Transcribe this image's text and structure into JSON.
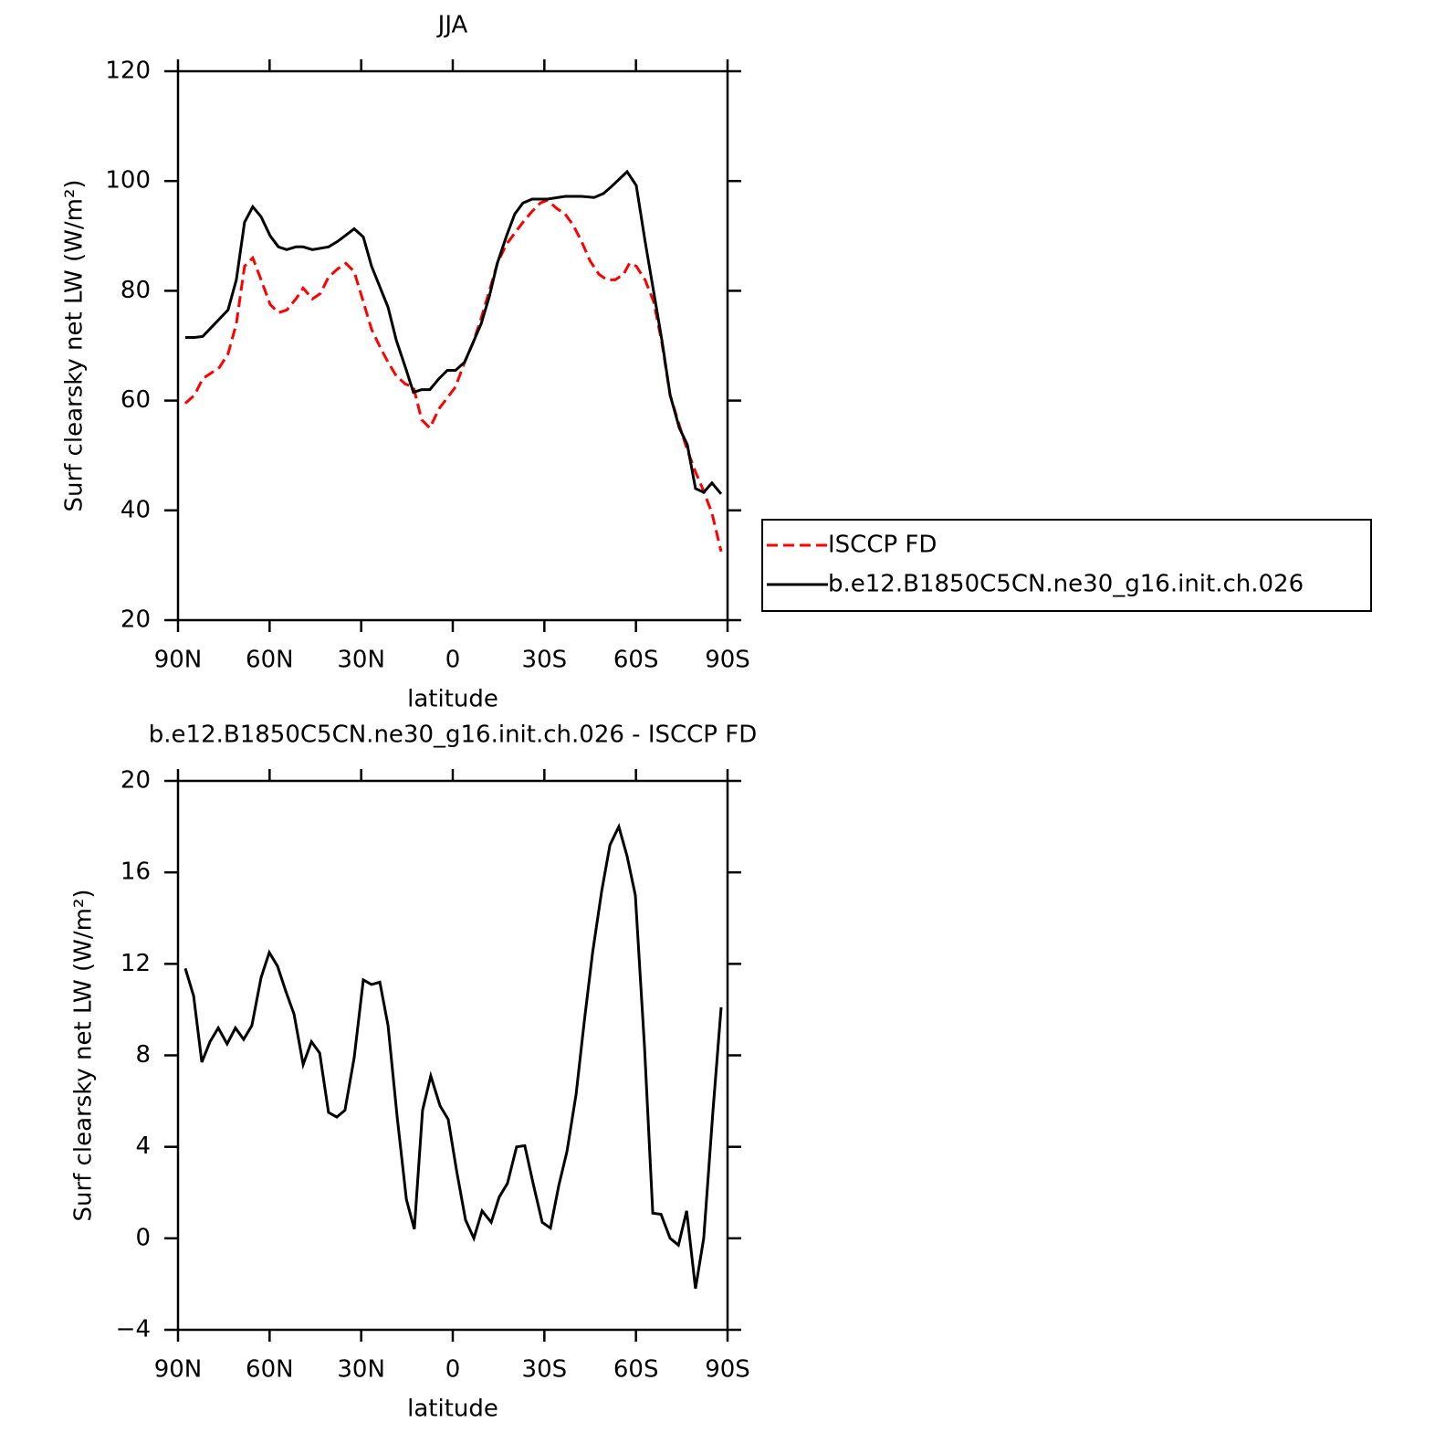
{
  "chart_data": [
    {
      "type": "line",
      "title": "JJA",
      "x_label": "latitude",
      "y_label": "Surf clearsky net LW (W/m²)",
      "xlim": [
        90,
        -90
      ],
      "xticks": [
        {
          "value": 90,
          "label": "90N"
        },
        {
          "value": 60,
          "label": "60N"
        },
        {
          "value": 30,
          "label": "30N"
        },
        {
          "value": 0,
          "label": "0"
        },
        {
          "value": -30,
          "label": "30S"
        },
        {
          "value": -60,
          "label": "60S"
        },
        {
          "value": -90,
          "label": "90S"
        }
      ],
      "ylim": [
        20,
        120
      ],
      "yticks": [
        20,
        40,
        60,
        80,
        100,
        120
      ],
      "legend": "right",
      "series": [
        {
          "name": "ISCCP FD",
          "color": "#ff0000",
          "dash": true,
          "x": [
            87.6,
            84.6,
            81.9,
            76.5,
            73.6,
            70.9,
            68.2,
            65.5,
            62.8,
            59.8,
            57.1,
            54.4,
            51.4,
            49.0,
            46.0,
            43.4,
            40.7,
            37.7,
            35.0,
            32.3,
            29.3,
            26.6,
            23.6,
            21.2,
            18.5,
            15.5,
            12.9,
            10.2,
            7.5,
            4.5,
            1.8,
            -0.9,
            -3.9,
            -6.6,
            -9.3,
            -12.0,
            -14.6,
            -17.6,
            -20.3,
            -23.0,
            -26.0,
            -28.7,
            -31.0,
            -34.1,
            -36.8,
            -39.4,
            -42.2,
            -44.9,
            -47.9,
            -50.5,
            -53.2,
            -55.9,
            -57.9,
            -60.1,
            -63.0,
            -65.8,
            -68.5,
            -71.2,
            -74.2,
            -76.8,
            -79.5,
            -82.2,
            -84.9,
            -87.9
          ],
          "values": [
            59.5,
            61,
            64,
            66,
            68.5,
            74,
            84.5,
            86,
            82,
            77.5,
            76,
            76.5,
            78.5,
            80.5,
            78.5,
            79.5,
            82.5,
            84,
            85,
            83.5,
            78,
            73,
            69.5,
            67,
            64.5,
            63,
            62.5,
            56.5,
            55,
            58.5,
            60.5,
            62.5,
            67,
            70.5,
            75,
            80,
            85,
            88.5,
            90.5,
            92.5,
            94.5,
            96,
            96.5,
            95,
            94,
            92,
            89,
            85.5,
            83,
            82,
            82,
            83,
            85,
            84.5,
            82,
            78,
            70.5,
            61,
            55.5,
            51,
            47,
            43.5,
            39.5,
            32.5
          ]
        },
        {
          "name": "b.e12.B1850C5CN.ne30_g16.init.ch.026",
          "color": "#000000",
          "dash": false,
          "x": [
            87.6,
            84.6,
            81.9,
            73.6,
            70.9,
            68.2,
            65.5,
            62.8,
            59.8,
            57.1,
            54.4,
            51.4,
            49.0,
            46.0,
            40.7,
            37.7,
            32.3,
            29.3,
            26.6,
            21.2,
            18.5,
            15.5,
            12.9,
            10.2,
            7.5,
            4.5,
            1.8,
            -0.9,
            -3.9,
            -9.3,
            -12.0,
            -14.6,
            -17.6,
            -20.3,
            -23.0,
            -26.0,
            -31.0,
            -36.8,
            -42.2,
            -46.3,
            -49.3,
            -52.0,
            -57.1,
            -60.1,
            -63.0,
            -68.5,
            -71.2,
            -74.2,
            -76.8,
            -79.5,
            -82.2,
            -84.9,
            -87.9
          ],
          "values": [
            71.5,
            71.5,
            71.7,
            76.5,
            82,
            92.5,
            95.3,
            93.5,
            90,
            88,
            87.5,
            88,
            88,
            87.5,
            88,
            89,
            91.3,
            89.8,
            84.5,
            77,
            71,
            66,
            61.5,
            62,
            62,
            64,
            65.5,
            65.5,
            67,
            74,
            79,
            85,
            90,
            94,
            96,
            96.7,
            96.7,
            97.2,
            97.2,
            97,
            97.7,
            99,
            101.7,
            99.2,
            89,
            71,
            61,
            55,
            52,
            44,
            43.3,
            45,
            43
          ]
        }
      ]
    },
    {
      "type": "line",
      "title": "b.e12.B1850C5CN.ne30_g16.init.ch.026 - ISCCP FD",
      "x_label": "latitude",
      "y_label": "Surf clearsky net LW (W/m²)",
      "xlim": [
        90,
        -90
      ],
      "xticks": [
        {
          "value": 90,
          "label": "90N"
        },
        {
          "value": 60,
          "label": "60N"
        },
        {
          "value": 30,
          "label": "30N"
        },
        {
          "value": 0,
          "label": "0"
        },
        {
          "value": -30,
          "label": "30S"
        },
        {
          "value": -60,
          "label": "60S"
        },
        {
          "value": -90,
          "label": "90S"
        }
      ],
      "ylim": [
        -4,
        20
      ],
      "yticks": [
        {
          "value": -4,
          "label": "−4"
        },
        0,
        4,
        8,
        12,
        16,
        20
      ],
      "series": [
        {
          "color": "#000000",
          "dash": false,
          "x": [
            87.6,
            84.9,
            82.2,
            79.5,
            76.8,
            73.9,
            71.2,
            68.5,
            65.8,
            62.8,
            60.1,
            57.4,
            54.7,
            52.0,
            49.0,
            46.3,
            43.6,
            40.7,
            38.0,
            35.3,
            32.3,
            29.3,
            26.6,
            23.9,
            21.2,
            18.2,
            15.2,
            12.6,
            9.9,
            7.2,
            4.2,
            1.5,
            -1.2,
            -4.2,
            -6.9,
            -9.6,
            -12.6,
            -15.2,
            -17.9,
            -20.9,
            -23.6,
            -26.3,
            -29.3,
            -32.0,
            -34.7,
            -37.4,
            -40.4,
            -43.1,
            -45.8,
            -48.8,
            -51.5,
            -54.4,
            -57.1,
            -59.8,
            -62.8,
            -65.5,
            -68.2,
            -71.2,
            -73.9,
            -76.6,
            -79.5,
            -82.2,
            -85.2,
            -87.9
          ],
          "values": [
            11.8,
            10.6,
            7.7,
            8.6,
            9.2,
            8.5,
            9.2,
            8.7,
            9.3,
            11.4,
            12.5,
            11.9,
            10.8,
            9.8,
            7.6,
            8.6,
            8.1,
            5.5,
            5.3,
            5.6,
            7.9,
            11.3,
            11.1,
            11.2,
            9.3,
            5.3,
            1.7,
            0.4,
            5.6,
            7.1,
            5.8,
            5.2,
            3.0,
            0.8,
            0.0,
            1.2,
            0.7,
            1.8,
            2.4,
            4.0,
            4.05,
            2.4,
            0.7,
            0.45,
            2.3,
            3.8,
            6.3,
            9.5,
            12.5,
            15.2,
            17.2,
            18.0,
            16.7,
            15.0,
            8.4,
            1.1,
            1.05,
            0.0,
            -0.3,
            1.2,
            -2.2,
            0.0,
            5.5,
            10.1
          ]
        }
      ]
    }
  ]
}
